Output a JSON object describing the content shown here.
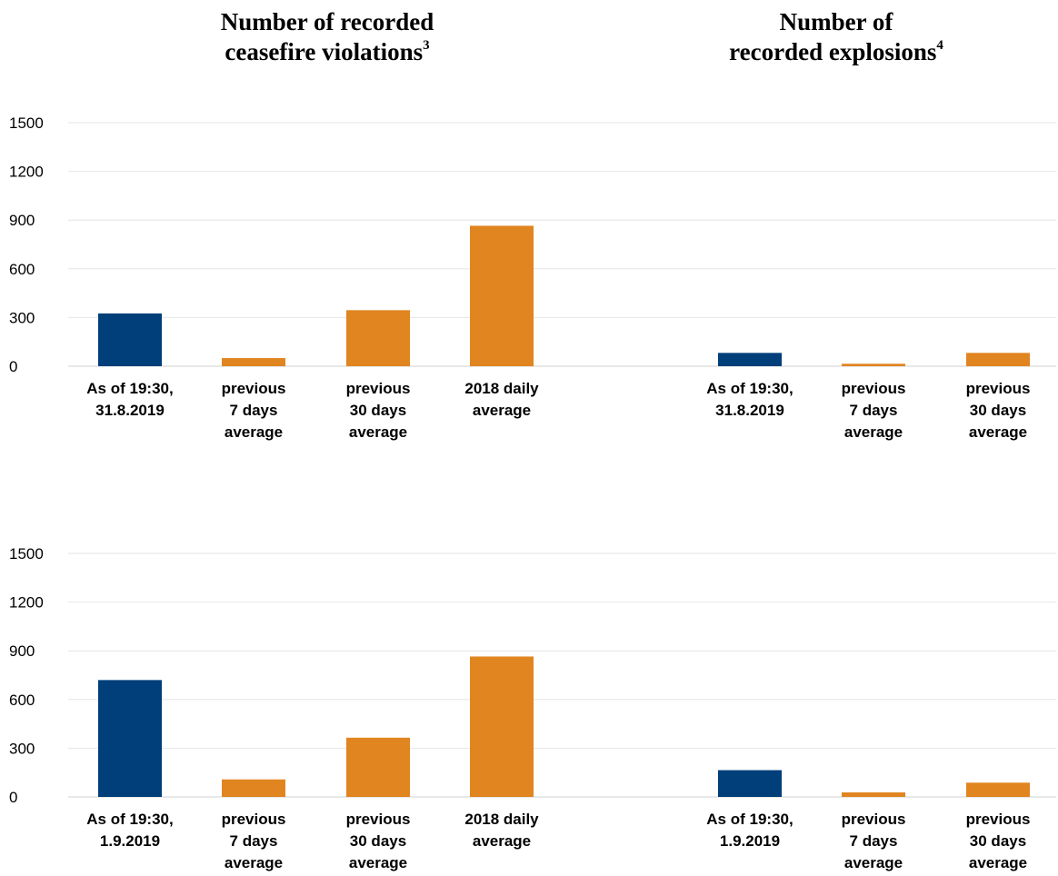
{
  "titles": {
    "left": "Number of recorded ceasefire violations",
    "left_line1": "Number of recorded",
    "left_line2": "ceasefire violations",
    "left_footnote": "3",
    "right": "Number of recorded explosions",
    "right_line1": "Number of",
    "right_line2": "recorded explosions",
    "right_footnote": "4"
  },
  "colors": {
    "current": "#003f7a",
    "average": "#e0851f",
    "gridline": "#e6e6e6",
    "axis": "#d0d0d0"
  },
  "chart_data": [
    {
      "type": "bar",
      "panel": "top-left",
      "categories": [
        [
          "As of 19:30,",
          "31.8.2019"
        ],
        [
          "previous",
          "7 days",
          "average"
        ],
        [
          "previous",
          "30 days",
          "average"
        ],
        [
          "2018 daily",
          "average"
        ]
      ],
      "values": [
        325,
        50,
        345,
        865
      ],
      "ylim": [
        0,
        1500
      ],
      "yticks": [
        0,
        300,
        600,
        900,
        1200,
        1500
      ],
      "grid": true
    },
    {
      "type": "bar",
      "panel": "top-right",
      "categories": [
        [
          "As of 19:30,",
          "31.8.2019"
        ],
        [
          "previous",
          "7 days",
          "average"
        ],
        [
          "previous",
          "30 days",
          "average"
        ]
      ],
      "values": [
        82,
        15,
        82
      ],
      "ylim": [
        0,
        1500
      ],
      "grid": true
    },
    {
      "type": "bar",
      "panel": "bottom-left",
      "categories": [
        [
          "As of 19:30,",
          "1.9.2019"
        ],
        [
          "previous",
          "7 days",
          "average"
        ],
        [
          "previous",
          "30 days",
          "average"
        ],
        [
          "2018 daily",
          "average"
        ]
      ],
      "values": [
        720,
        108,
        365,
        865
      ],
      "ylim": [
        0,
        1500
      ],
      "yticks": [
        0,
        300,
        600,
        900,
        1200,
        1500
      ],
      "grid": true
    },
    {
      "type": "bar",
      "panel": "bottom-right",
      "categories": [
        [
          "As of 19:30,",
          "1.9.2019"
        ],
        [
          "previous",
          "7 days",
          "average"
        ],
        [
          "previous",
          "30 days",
          "average"
        ]
      ],
      "values": [
        165,
        28,
        88
      ],
      "ylim": [
        0,
        1500
      ],
      "grid": true
    }
  ]
}
